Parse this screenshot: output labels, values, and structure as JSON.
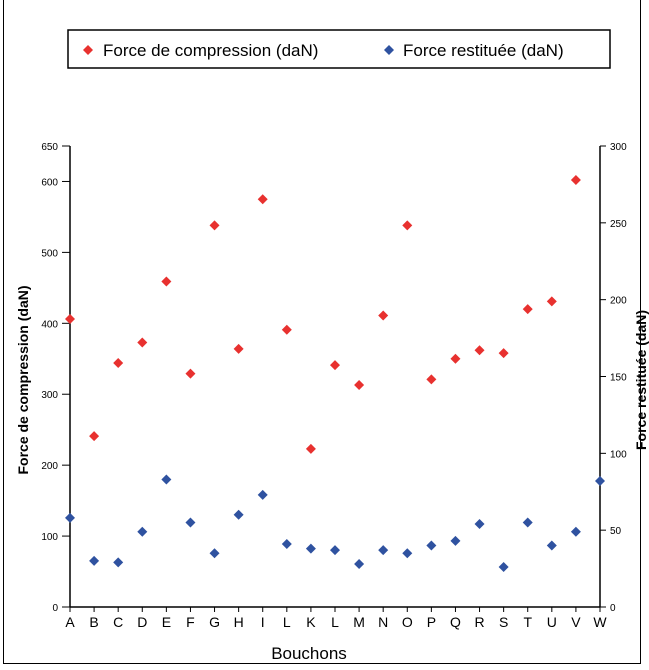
{
  "chart_data": {
    "type": "scatter",
    "title": "",
    "xlabel": "Bouchons",
    "ylabel_left": "Force de compression (daN)",
    "ylabel_right": "Force restituée (daN)",
    "categories": [
      "A",
      "B",
      "C",
      "D",
      "E",
      "F",
      "G",
      "H",
      "I",
      "L",
      "K",
      "L",
      "M",
      "N",
      "O",
      "P",
      "Q",
      "R",
      "S",
      "T",
      "U",
      "V",
      "W"
    ],
    "left_ylim": [
      0,
      650
    ],
    "right_ylim": [
      0,
      300
    ],
    "left_yticks": [
      0,
      100,
      200,
      300,
      400,
      500,
      600,
      650
    ],
    "right_yticks": [
      0,
      50,
      100,
      150,
      200,
      250,
      300
    ],
    "legend_position": "top",
    "grid": false,
    "series": [
      {
        "name": "Force de compression (daN)",
        "axis": "left",
        "color": "#e8312f",
        "marker": "diamond",
        "values": [
          406,
          241,
          344,
          373,
          459,
          329,
          538,
          364,
          575,
          391,
          223,
          341,
          313,
          411,
          538,
          321,
          350,
          362,
          358,
          420,
          431,
          602,
          null
        ]
      },
      {
        "name": "Force restituée (daN)",
        "axis": "right",
        "color": "#2f52a0",
        "marker": "diamond",
        "values": [
          58,
          30,
          29,
          49,
          83,
          55,
          35,
          60,
          73,
          41,
          38,
          37,
          28,
          37,
          35,
          40,
          43,
          54,
          26,
          55,
          40,
          49,
          82
        ]
      }
    ]
  }
}
